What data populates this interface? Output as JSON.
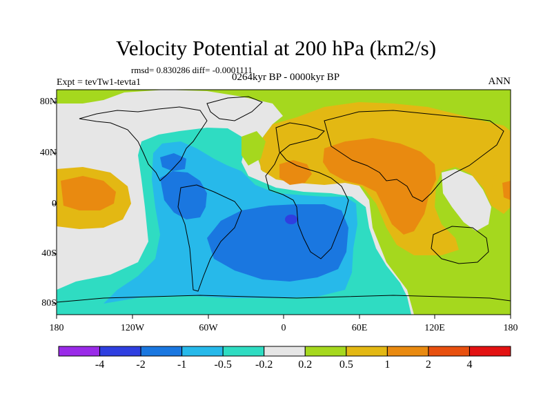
{
  "header": {
    "title": "Velocity Potential at 200 hPa (km2/s)",
    "stats": "rmsd= 0.830286 diff= -0.0001111",
    "experiment": "Expt = tevTw1-tevta1",
    "period": "0264kyr BP - 0000kyr BP",
    "season": "ANN"
  },
  "axes": {
    "lon_ticks": [
      "180",
      "120W",
      "60W",
      "0",
      "60E",
      "120E",
      "180"
    ],
    "lat_ticks": [
      "80N",
      "40N",
      "0",
      "40S",
      "80S"
    ]
  },
  "colorbar": {
    "labels": [
      "-4",
      "-2",
      "-1",
      "-0.5",
      "-0.2",
      "0.2",
      "0.5",
      "1",
      "2",
      "4"
    ],
    "colors": [
      "#9a2be8",
      "#2f3fe0",
      "#1a77e0",
      "#27b9ea",
      "#2fdcc2",
      "#e6e6e6",
      "#a5d81e",
      "#e3b813",
      "#e98a10",
      "#e8500f",
      "#e31212"
    ]
  }
}
